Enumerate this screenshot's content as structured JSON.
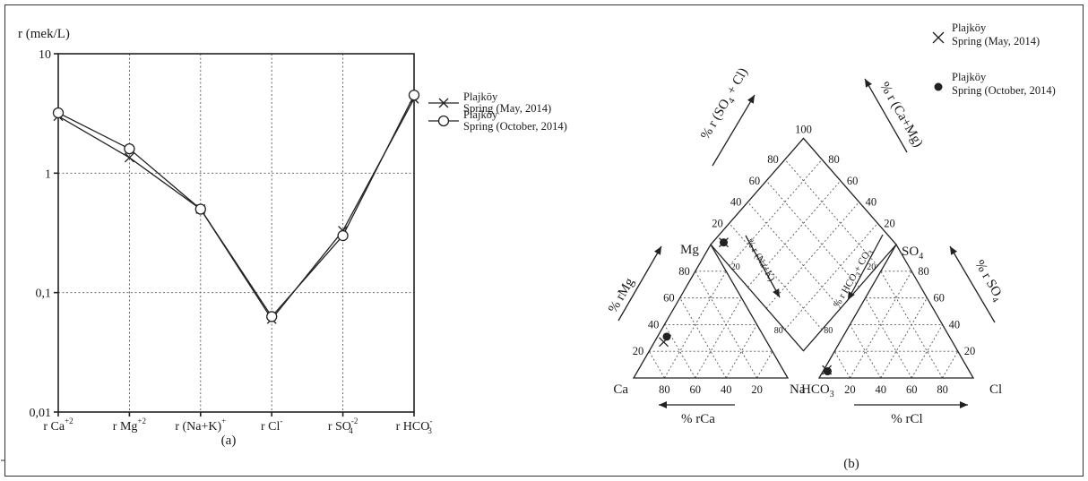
{
  "chart_data": [
    {
      "type": "line",
      "panel_label": "(a)",
      "ylabel": "r (mek/L)",
      "yscale": "log",
      "ylim": [
        0.01,
        10
      ],
      "ytick_labels": [
        "10",
        "1",
        "0,1",
        "0,01"
      ],
      "categories": [
        "r Ca",
        "r Mg",
        "r (Na+K)",
        "r Cl",
        "r SO",
        "r HCO"
      ],
      "category_superscripts": [
        "+2",
        "+2",
        "+",
        "-",
        "-2",
        "-"
      ],
      "category_subscripts": [
        "",
        "",
        "",
        "",
        "4",
        "3"
      ],
      "series": [
        {
          "name": "Plajköy Spring (May, 2014)",
          "marker": "x",
          "values": [
            3.0,
            1.35,
            0.5,
            0.06,
            0.33,
            4.2
          ]
        },
        {
          "name": "Plajköy Spring (October, 2014)",
          "marker": "o",
          "values": [
            3.2,
            1.6,
            0.5,
            0.063,
            0.3,
            4.5
          ]
        }
      ],
      "legend": [
        {
          "line1": "Plajköy",
          "line2": "Spring (May, 2014)"
        },
        {
          "line1": "Plajköy",
          "line2": "Spring (October, 2014)"
        }
      ],
      "grid": true,
      "legend_placement": "right"
    },
    {
      "type": "scatter",
      "subtype": "piper_diagram",
      "panel_label": "(b)",
      "diamond_top_label": "100",
      "diamond_tick_labels": [
        "80",
        "60",
        "40",
        "20"
      ],
      "triangle_tick_labels": [
        "80",
        "60",
        "40",
        "20"
      ],
      "corner_labels": {
        "ca": "Ca",
        "na": "Na",
        "hco3": "HCO",
        "hco3_sub": "3",
        "cl": "Cl",
        "mg": "Mg",
        "so4": "SO",
        "so4_sub": "4"
      },
      "axis_labels": {
        "rca": "% rCa",
        "rcl": "% rCl",
        "rmg": "% rMg",
        "rso4": "% r SO",
        "rso4_sub": "4",
        "nak": "% r (Na+K)",
        "hco3co3": "% r HCO",
        "hco3co3_mid": "+ CO",
        "hco3co3_sub1": "3",
        "hco3co3_sub2": "3",
        "so4cl": "% r (SO",
        "so4cl_rest": "+ Cl)",
        "so4cl_sub": "4",
        "camg": "% r (Ca+Mg)"
      },
      "points": [
        {
          "series": "Plajköy Spring (May, 2014)",
          "marker": "x",
          "cation_ca": 67,
          "cation_mg": 27,
          "anion_cl": 2,
          "anion_so4": 6
        },
        {
          "series": "Plajköy Spring (October, 2014)",
          "marker": "dot",
          "cation_ca": 63,
          "cation_mg": 31,
          "anion_cl": 3,
          "anion_so4": 5
        }
      ],
      "legend": [
        {
          "line1": "Plajköy",
          "line2": "Spring (May, 2014)"
        },
        {
          "line1": "Plajköy",
          "line2": "Spring (October, 2014)"
        }
      ],
      "legend_placement": "top-right"
    }
  ]
}
